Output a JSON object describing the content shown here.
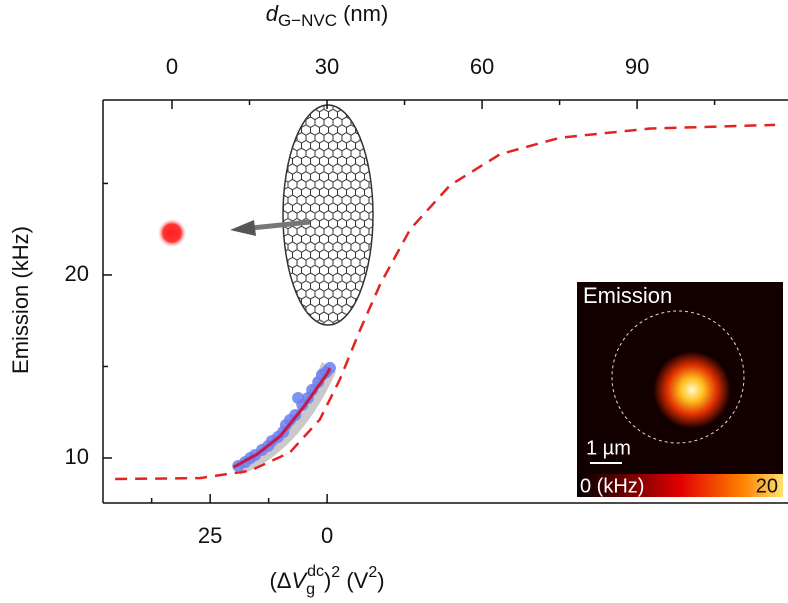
{
  "chart_data": {
    "type": "line",
    "x_label_top": [
      "d",
      "G−NVC",
      " (nm)"
    ],
    "x_label_bottom": [
      "(Δ",
      "V",
      "g",
      "dc",
      ")",
      "2",
      " (V",
      "2",
      ")"
    ],
    "y_label": "Emission (kHz)",
    "xlim": [
      -13.35,
      119.2
    ],
    "xticks": [
      0,
      30,
      60,
      90
    ],
    "xminor_ticks": [
      15,
      45,
      75,
      105
    ],
    "x2lim": [
      47.9,
      -98.5
    ],
    "x2ticks": [
      25,
      0
    ],
    "x2minor_ticks": [
      37.5,
      12.5
    ],
    "ylim": [
      7.54,
      29.56
    ],
    "yticks": [
      10,
      20
    ],
    "yminor_ticks": [
      15,
      25
    ],
    "series": [
      {
        "color": "#e3231f",
        "dashed": true,
        "x": [
          -11.0,
          5.4,
          15.1,
          22.8,
          28.6,
          32.5,
          36.4,
          40.3,
          46.1,
          53.8,
          63.5,
          75.1,
          92.5,
          116.7
        ],
        "values": [
          8.85,
          8.9,
          9.3,
          10.3,
          12.1,
          14.3,
          17.0,
          19.5,
          22.5,
          24.9,
          26.6,
          27.5,
          28.0,
          28.2
        ]
      },
      {
        "color": "#6c7ff0",
        "type": "scatter",
        "axis": "x2",
        "x": [
          19.0,
          17.5,
          16.4,
          15.4,
          13.9,
          12.6,
          11.8,
          10.5,
          9.4,
          8.8,
          7.9,
          6.8,
          6.2,
          5.3,
          4.1,
          3.2,
          1.9,
          1.1,
          0.2,
          -0.6
        ],
        "values": [
          9.56,
          9.78,
          10.0,
          10.16,
          10.44,
          10.66,
          10.93,
          11.15,
          11.42,
          11.8,
          12.08,
          12.35,
          13.28,
          12.9,
          13.28,
          13.72,
          14.15,
          14.54,
          14.7,
          14.92
        ]
      },
      {
        "color": "#c8184a",
        "axis": "x2",
        "x": [
          20.0,
          15.0,
          10.0,
          5.0,
          0.0,
          -0.6
        ],
        "values": [
          9.5,
          10.2,
          11.2,
          12.8,
          14.6,
          14.9
        ]
      }
    ],
    "inset": {
      "title": "Emission",
      "scale_bar": "1 µm",
      "colorbar_min_label": "0 (kHz)",
      "colorbar_max_label": "20"
    }
  }
}
